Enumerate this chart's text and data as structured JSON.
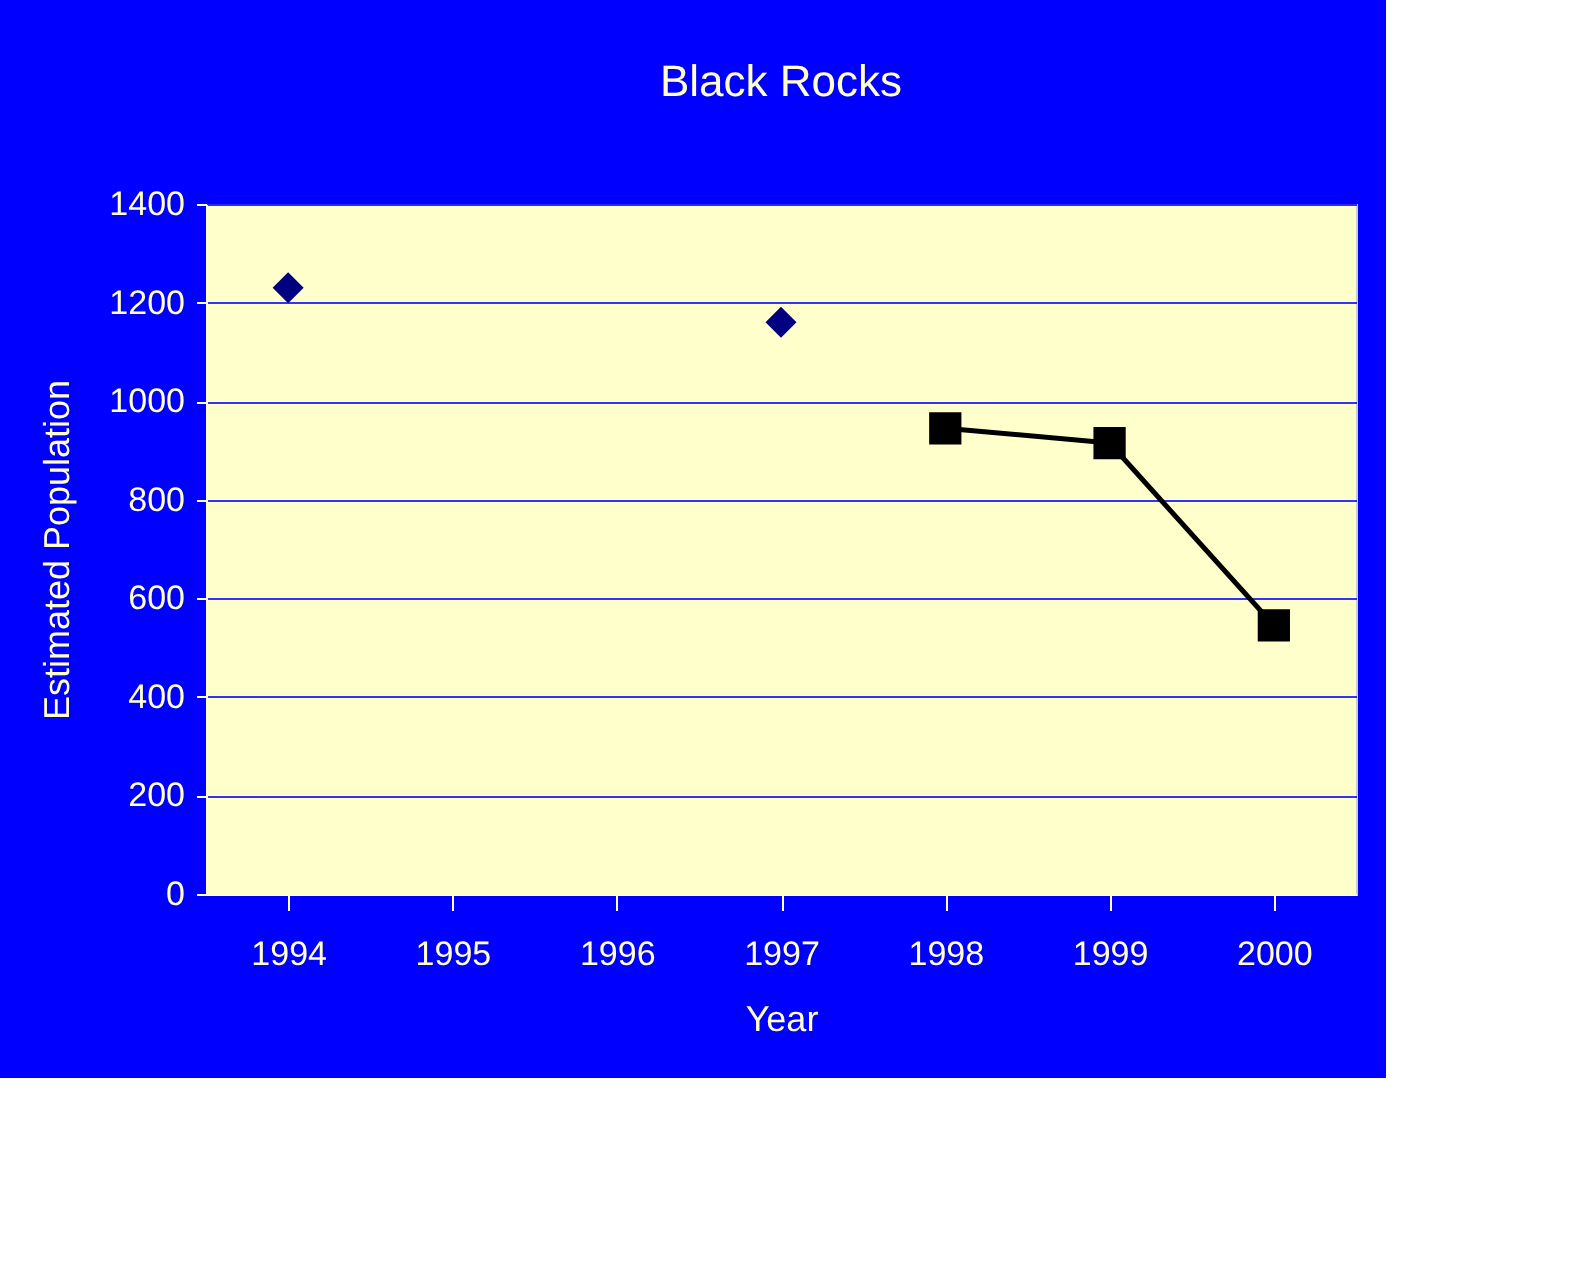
{
  "chart_data": {
    "type": "scatter",
    "title": "Black Rocks",
    "xlabel": "Year",
    "ylabel": "Estimated Population",
    "categories": [
      "1994",
      "1995",
      "1996",
      "1997",
      "1998",
      "1999",
      "2000"
    ],
    "series": [
      {
        "marker": "diamond",
        "color": "#000080",
        "values": [
          1230,
          null,
          null,
          1160,
          null,
          null,
          null
        ]
      },
      {
        "type": "line",
        "marker": "square",
        "line_style": "solid",
        "color": "#000000",
        "values": [
          null,
          null,
          null,
          null,
          945,
          915,
          545
        ]
      }
    ],
    "ylim": [
      0,
      1400
    ],
    "yticks": [
      0,
      200,
      400,
      600,
      800,
      1000,
      1200,
      1400
    ],
    "grid": "y"
  }
}
